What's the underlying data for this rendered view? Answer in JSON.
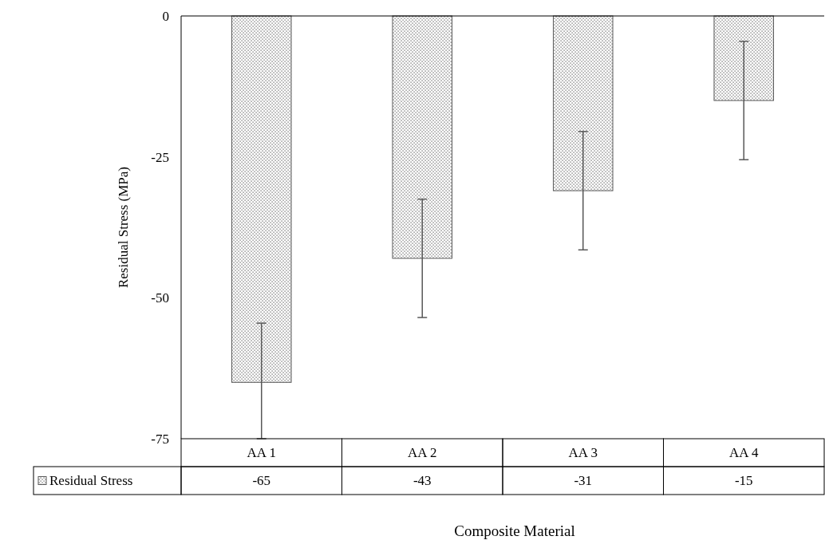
{
  "chart_data": {
    "type": "bar",
    "xlabel": "Composite Material",
    "ylabel": "Residual Stress (MPa)",
    "categories": [
      "AA 1",
      "AA 2",
      "AA 3",
      "AA 4"
    ],
    "series": [
      {
        "name": "Residual Stress",
        "color": "#595959",
        "values": [
          -65,
          -43,
          -31,
          -15
        ],
        "errors": [
          [
            -75,
            -54.5
          ],
          [
            -53.5,
            -32.5
          ],
          [
            -41.5,
            -20.5
          ],
          [
            -25.5,
            -4.5
          ]
        ]
      }
    ],
    "ylim": [
      -75,
      0
    ],
    "yticks": [
      0,
      -25,
      -50,
      -75
    ],
    "data_labels": true,
    "legend": "bottom",
    "grid": false
  }
}
